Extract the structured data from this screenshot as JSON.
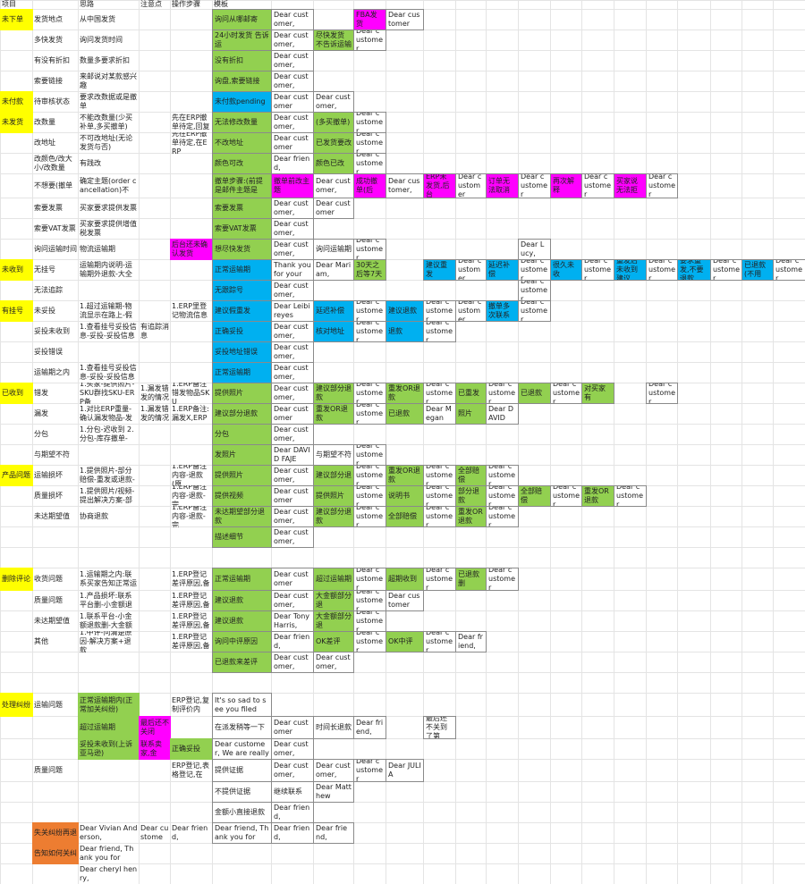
{
  "table": {
    "rows": [
      [
        "项目",
        null,
        "思路",
        "注意点",
        "操作步骤",
        "模板"
      ],
      [
        "未下单",
        "发货地点",
        "从中国发货",
        null,
        null,
        "询问从哪邮寄",
        "Dear customer,",
        null,
        "FBA发货",
        "Dear customer"
      ],
      [
        null,
        "多快发货",
        "询问发货时间",
        null,
        null,
        "24小时发货 告诉运",
        "Dear customer,",
        "尽快发货 不告诉运输",
        "Dear customer,"
      ],
      [
        null,
        "有没有折扣",
        "数量多要求折扣",
        null,
        null,
        "没有折扣",
        "Dear customer,"
      ],
      [
        null,
        "索要链接",
        "来邮说对某款感兴趣",
        null,
        null,
        "询盘,索要链接",
        "Dear customer,"
      ],
      [
        "未付款",
        "待审核状态",
        "要求改数据或是撤单",
        null,
        null,
        "未付款pending",
        "Dear customer",
        "Dear customer,"
      ],
      [
        "未发货",
        "改数量",
        "不能改数量(少买补单,多买撤单)",
        null,
        "先在ERP撤单待定,回复",
        "无法修改数量",
        "Dear customer,",
        "(多买撤单)",
        "Dear customer"
      ],
      [
        null,
        "改地址",
        "不可改地址(无论发货与否)",
        null,
        "先在ERP撤单待定,在ERP",
        "不改地址",
        "Dear customer",
        "已发货要改",
        "Dear customer"
      ],
      [
        null,
        "改颜色/改大小/改数量",
        "有践改",
        null,
        null,
        "颜色可改",
        "Dear friend,",
        "颜色已改",
        "Dear customer"
      ],
      [
        null,
        "不想要(撤单",
        "确定主题(order cancellation)不",
        null,
        null,
        "撤单步骤:(前提是邮件主题是",
        "撤单前改主题",
        "Dear customer,",
        "成功撤单(后",
        "Dear customer,",
        "ERP未发货,后台",
        "Dear customer",
        "订单无法取消",
        "Dear customer",
        "再次解释",
        "Dear customer",
        "买家说无法拒",
        "Dear customer"
      ],
      [
        null,
        "索要发票",
        "买家要求提供发票",
        null,
        null,
        "索要发票",
        "Dear customer,",
        "Dear customer"
      ],
      [
        null,
        "索要VAT发票",
        "买家要求提供增值税发票",
        null,
        null,
        "索要VAT发票",
        "Dear customer,"
      ],
      [
        null,
        "询问运输时间",
        "物流运输期",
        null,
        "后台还未确认发货",
        "想尽快发货",
        "Dear customer,",
        "询问运输期",
        "Dear customer",
        null,
        null,
        null,
        null,
        "Dear Lucy,"
      ],
      [
        "未收到",
        "无挂号",
        "运输期内说明-运输期外退款-大全",
        null,
        null,
        "正常运输期",
        "Thank you for your",
        "Dear Mariam,",
        "30天之后等7天",
        null,
        "建议重发",
        "Dear customer",
        "延迟补偿",
        "Dear customer",
        "很久未收",
        "Dear customer",
        "重发后未收到建议",
        "Dear customer",
        "要求重发,不要退款",
        "Dear customer",
        "已退款(不用",
        "Dear customer"
      ],
      [
        null,
        "无法追踪",
        null,
        null,
        null,
        "无跟踪号",
        "Dear customer,",
        null,
        null,
        null,
        null,
        null,
        null,
        "Dear customer"
      ],
      [
        "有挂号",
        "未妥投",
        "1.超过运输期-物流显示在路上-假",
        null,
        "1.ERP里登记物流信息",
        "建议假重发",
        "Dear Leibireyes",
        "延迟补偿",
        "Dear customer",
        "建议退款",
        "Dear customer",
        "Dear customer",
        "撤单多次联系",
        "Dear customer"
      ],
      [
        null,
        "妥投未收到",
        "1.查看挂号妥投信息-妥投-妥投信息",
        "有追踪消息",
        null,
        "正确妥投",
        "Dear customer,",
        "核对地址",
        "Dear customer",
        "退款",
        "Dear customer,"
      ],
      [
        null,
        "妥投错误",
        null,
        null,
        null,
        "妥投地址错误",
        "Dear customer,"
      ],
      [
        null,
        "运输期之内",
        "1.查看挂号妥投信息-妥投-妥投信息",
        null,
        null,
        "正常运输期",
        "Dear customer,"
      ],
      [
        "已收到",
        "错发",
        "1.买家-提供照片-SKU群找SKU-ERP备",
        "1.漏发错发的情况",
        "1.ERP备注错发物品SKU",
        "提供照片",
        "Dear customer,",
        "建议部分退款",
        "Dear customer",
        "重发OR退款",
        "Dear customer",
        "已重发",
        "Dear customer",
        "已退款",
        "Dear customer",
        "对买家有",
        null,
        "Dear customer"
      ],
      [
        null,
        "漏发",
        "1.对比ERP重量-确认漏发物品-发",
        "1.漏发错发的情况",
        "1.ERP备注:漏发X,ERP",
        "建议部分退款",
        "Dear customer",
        "重发OR退款",
        "Dear customer",
        "已退款",
        "Dear Megan",
        "照片",
        "Dear DAVID"
      ],
      [
        null,
        "分包",
        "1.分包-迟收到 2.分包-库存撤单-",
        null,
        null,
        "分包",
        "Dear customer,"
      ],
      [
        null,
        "与期望不符",
        null,
        null,
        null,
        "发照片",
        "Dear DAVID FAJE",
        "与期望不符",
        "Dear customer"
      ],
      [
        "产品问题",
        "运输损坏",
        "1.提供照片-部分赔偿-重发或退款-",
        null,
        "1.ERP备注内容-退款(原",
        "提供照片",
        "Dear customer,",
        "建议部分退",
        "Dear customer",
        "重发OR退款",
        "Dear customer",
        "全部赔偿",
        "Dear customer"
      ],
      [
        null,
        "质量损坏",
        "1.提供照片/视频-提出解决方案-部",
        null,
        "1.ERP备注内容-退款-完",
        "提供视频",
        "Dear customer",
        "提供照片",
        "Dear customer",
        "说明书",
        "Dear customer",
        "部分退款",
        "Dear customer",
        "全部赔偿",
        "Dear customer",
        "重发OR退款",
        "Dear customer"
      ],
      [
        null,
        "未达期望值",
        "协商退款",
        null,
        "1.ERP备注内容-退款-完",
        "未达期望部分退款",
        "Dear customer,",
        "建议部分退款",
        "Dear customer",
        "全部赔偿",
        "Dear customer",
        "重发OR退款",
        "Dear customer"
      ],
      [
        null,
        null,
        null,
        null,
        null,
        "描述细节",
        "Dear customer,"
      ],
      [],
      [
        "删除评论",
        "收货问题",
        "1.运输期之内:联系买家告知正常运",
        null,
        "1.ERP登记差评原因,备",
        "正常运输期",
        "Dear customer",
        "超过运输期",
        "Dear customer",
        "超期收到",
        "Dear customer",
        "已退款删",
        "Dear customer"
      ],
      [
        null,
        "质量问题",
        "1.产品损坏:联系平台删-小金额退",
        null,
        "1.ERP登记差评原因,备",
        "建议退款",
        "Dear customer,",
        "大金额部分退",
        "Dear customer,",
        "Dear customer"
      ],
      [
        null,
        "未达期望值",
        "1.联系平台-小金额退款删-大金额",
        null,
        "1.ERP登记差评原因,备",
        "建议退款",
        "Dear Tony Harris,",
        "大金额部分退",
        "Dear customer"
      ],
      [
        null,
        "其他",
        "1.中评-问清楚原因-解决方案+退款",
        null,
        "1.ERP登记差评原因,备",
        "询问中评原因",
        "Dear friend,",
        "OK差评",
        "Dear customer",
        "OK中评",
        "Dear customer",
        "Dear friend,"
      ],
      [
        null,
        null,
        null,
        null,
        null,
        "已退款来差评",
        "Dear customer,",
        "Dear customer,"
      ],
      [],
      [
        "处理纠纷",
        "运输问题",
        "正常运输期内(正常加关纠纷)",
        null,
        "ERP登记,复制评价内",
        "It's so sad to see you filed"
      ],
      [
        null,
        null,
        "超过运输期",
        "最后还不关闭",
        null,
        "在派发稍等一下",
        "Dear customer",
        "时间长退款",
        "Dear friend,",
        null,
        "最后还不关到了第"
      ],
      [
        null,
        null,
        "妥投未收到(上诉亚马逊)",
        "联系卖家,金",
        "正确妥投",
        "Dear customer, We are really",
        "Dear customer,"
      ],
      [
        null,
        "质量问题",
        null,
        null,
        "ERP登记,表格登记,在",
        "提供证据",
        "Dear customer,",
        "Dear customer,",
        "Dear customer",
        "Dear JULIA"
      ],
      [
        null,
        null,
        null,
        null,
        null,
        "不提供证据",
        "继续联系",
        "Dear Matthew"
      ],
      [
        null,
        null,
        null,
        null,
        null,
        "金额小直接退款",
        "Dear friend,"
      ],
      [
        null,
        "失关纠纷再退",
        "Dear Vivian Anderson,",
        "Dear custome",
        "Dear friend,",
        "Dear friend, Thank you for",
        "Dear friend,",
        "Dear friend,"
      ],
      [
        null,
        "告知如何关纠",
        "Dear friend, Thank you for"
      ],
      [
        null,
        null,
        "Dear cheryl henry,"
      ]
    ]
  }
}
